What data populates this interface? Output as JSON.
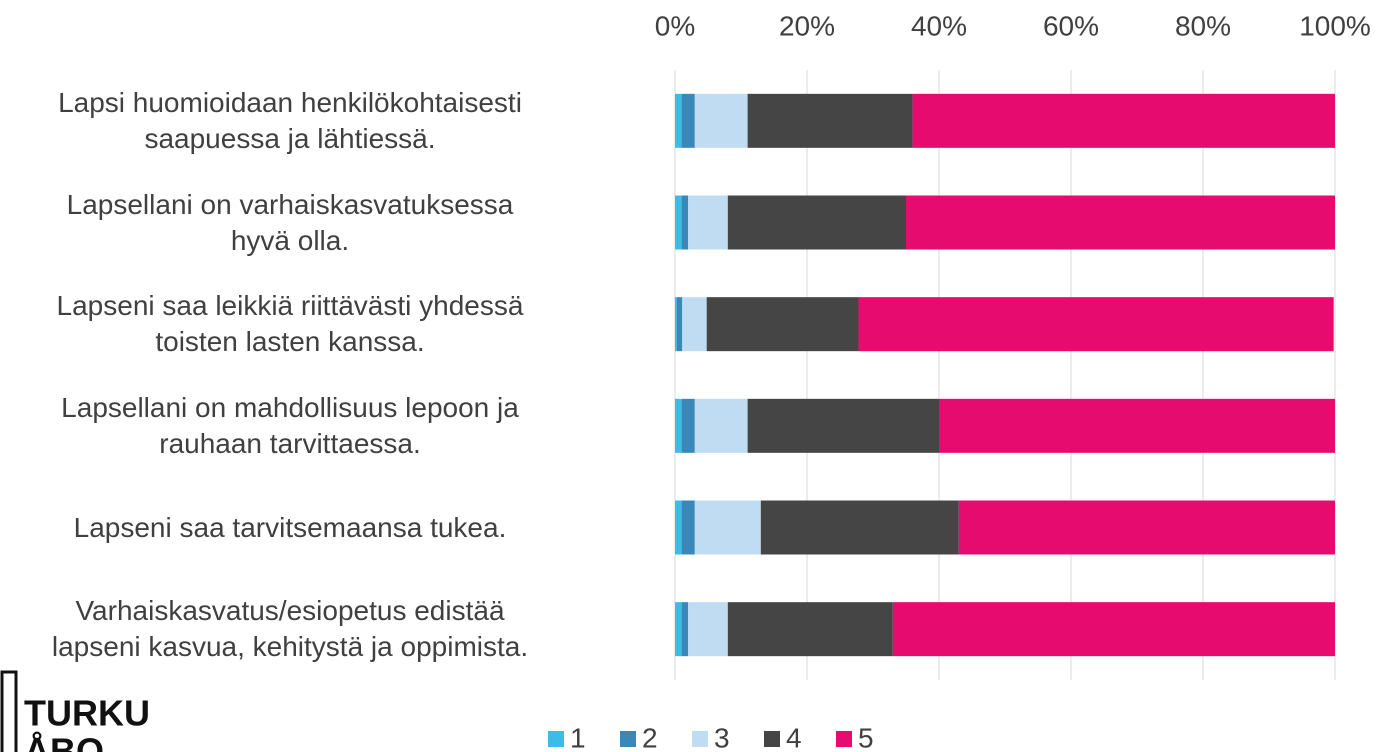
{
  "chart_data": {
    "type": "stacked_barh",
    "categories": [
      "Lapsi huomioidaan henkilökohtaisesti\nsaapuessa ja lähtiessä.",
      "Lapsellani on varhaiskasvatuksessa\nhyvä olla.",
      "Lapseni saa leikkiä riittävästi yhdessä\ntoisten lasten kanssa.",
      "Lapsellani on mahdollisuus lepoon ja\nrauhaan tarvittaessa.",
      "Lapseni saa tarvitsemaansa tukea.",
      "Varhaiskasvatus/esiopetus edistää\nlapseni kasvua, kehitystä ja oppimista."
    ],
    "series": [
      {
        "name": "1",
        "color": "#3bbde8",
        "values": [
          1,
          1,
          0.3,
          1,
          1,
          1
        ]
      },
      {
        "name": "2",
        "color": "#3a87b8",
        "values": [
          2,
          1,
          0.8,
          2,
          2,
          1
        ]
      },
      {
        "name": "3",
        "color": "#c0dcf3",
        "values": [
          8,
          6,
          3.7,
          8,
          10,
          6
        ]
      },
      {
        "name": "4",
        "color": "#454545",
        "values": [
          25,
          27,
          23,
          29,
          30,
          25
        ]
      },
      {
        "name": "5",
        "color": "#e60b6e",
        "values": [
          64,
          65,
          72,
          60,
          57,
          67
        ]
      }
    ],
    "xlim": [
      0,
      100
    ],
    "xticks": [
      {
        "value": 0,
        "label": "0%"
      },
      {
        "value": 20,
        "label": "20%"
      },
      {
        "value": 40,
        "label": "40%"
      },
      {
        "value": 60,
        "label": "60%"
      },
      {
        "value": 80,
        "label": "80%"
      },
      {
        "value": 100,
        "label": "100%"
      }
    ],
    "grid": true,
    "legend": "bottom"
  },
  "logo": {
    "lines": [
      "TURKU",
      "ÅBO"
    ]
  }
}
